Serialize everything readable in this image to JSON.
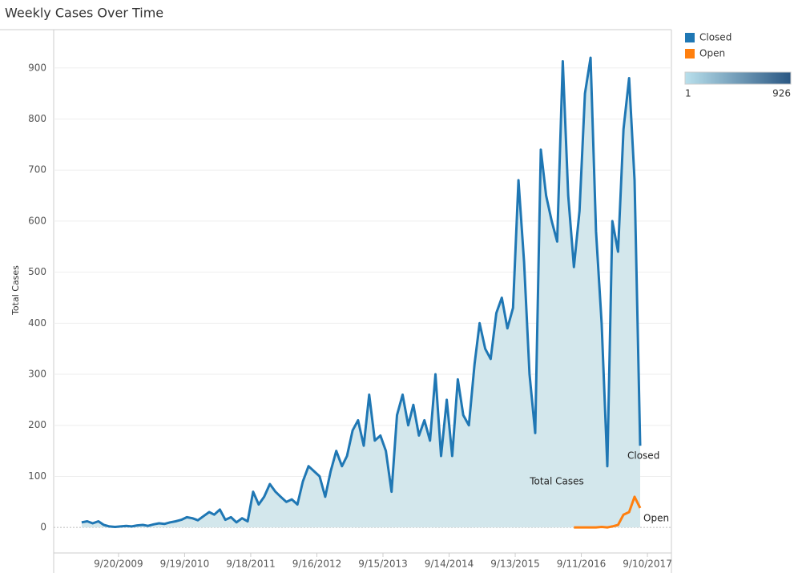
{
  "chart_data": {
    "type": "line",
    "title": "Weekly Cases Over Time",
    "ylabel": "Total Cases",
    "xlim": [
      "9/28/2008",
      "1/20/2018"
    ],
    "xticks": [
      "9/20/2009",
      "9/19/2010",
      "9/18/2011",
      "9/16/2012",
      "9/15/2013",
      "9/14/2014",
      "9/13/2015",
      "9/11/2016",
      "9/10/2017"
    ],
    "ylim": [
      -50,
      975
    ],
    "yticks": [
      0,
      100,
      200,
      300,
      400,
      500,
      600,
      700,
      800,
      900
    ],
    "grid": true,
    "area_fill": "#d3e7ec",
    "color_legend": {
      "min": 1,
      "max": 926,
      "colors": [
        "#b9e0ec",
        "#2a5783"
      ]
    },
    "annotations": [
      "Closed",
      "Total Cases",
      "Open"
    ],
    "series": [
      {
        "name": "Closed",
        "color": "#1f77b4",
        "x": [
          "3/1/2009",
          "4/1/2009",
          "5/1/2009",
          "6/1/2009",
          "7/1/2009",
          "8/1/2009",
          "9/1/2009",
          "10/1/2009",
          "11/1/2009",
          "12/1/2009",
          "1/1/2010",
          "2/1/2010",
          "3/1/2010",
          "4/1/2010",
          "5/1/2010",
          "6/1/2010",
          "7/1/2010",
          "8/1/2010",
          "9/1/2010",
          "10/1/2010",
          "11/1/2010",
          "12/1/2010",
          "1/1/2011",
          "2/1/2011",
          "3/1/2011",
          "4/1/2011",
          "5/1/2011",
          "6/1/2011",
          "7/1/2011",
          "8/1/2011",
          "9/1/2011",
          "10/1/2011",
          "11/1/2011",
          "12/1/2011",
          "1/1/2012",
          "2/1/2012",
          "3/1/2012",
          "4/1/2012",
          "5/1/2012",
          "6/1/2012",
          "7/1/2012",
          "8/1/2012",
          "9/1/2012",
          "10/1/2012",
          "11/1/2012",
          "12/1/2012",
          "1/1/2013",
          "2/1/2013",
          "3/1/2013",
          "4/1/2013",
          "5/1/2013",
          "6/1/2013",
          "7/1/2013",
          "8/1/2013",
          "9/1/2013",
          "10/1/2013",
          "11/1/2013",
          "12/1/2013",
          "1/1/2014",
          "2/1/2014",
          "3/1/2014",
          "4/1/2014",
          "5/1/2014",
          "6/1/2014",
          "7/1/2014",
          "8/1/2014",
          "9/1/2014",
          "10/1/2014",
          "11/1/2014",
          "12/1/2014",
          "1/1/2015",
          "2/1/2015",
          "3/1/2015",
          "4/1/2015",
          "5/1/2015",
          "6/1/2015",
          "7/1/2015",
          "8/1/2015",
          "9/1/2015",
          "10/1/2015",
          "11/1/2015",
          "12/1/2015",
          "1/1/2016",
          "2/1/2016",
          "3/1/2016",
          "4/1/2016",
          "5/1/2016",
          "6/1/2016",
          "7/1/2016",
          "8/1/2016",
          "9/1/2016",
          "10/1/2016",
          "11/1/2016",
          "12/1/2016",
          "1/1/2017",
          "2/1/2017",
          "3/1/2017",
          "4/1/2017",
          "5/1/2017",
          "6/1/2017",
          "7/1/2017",
          "8/1/2017"
        ],
        "values": [
          10,
          12,
          8,
          12,
          5,
          2,
          1,
          2,
          3,
          2,
          4,
          5,
          3,
          6,
          8,
          7,
          10,
          12,
          15,
          20,
          18,
          14,
          22,
          30,
          25,
          35,
          15,
          20,
          10,
          18,
          12,
          70,
          45,
          60,
          85,
          70,
          60,
          50,
          55,
          45,
          90,
          120,
          110,
          100,
          60,
          110,
          150,
          120,
          140,
          190,
          210,
          160,
          260,
          170,
          180,
          150,
          70,
          220,
          260,
          200,
          240,
          180,
          210,
          170,
          300,
          140,
          250,
          140,
          290,
          220,
          200,
          320,
          400,
          350,
          330,
          420,
          450,
          390,
          430,
          680,
          520,
          300,
          185,
          740,
          650,
          600,
          560,
          913,
          650,
          510,
          620,
          850,
          920,
          580,
          400,
          120,
          600,
          540,
          780,
          880,
          680,
          160
        ]
      },
      {
        "name": "Open",
        "color": "#ff7f0e",
        "x": [
          "8/1/2016",
          "9/1/2016",
          "10/1/2016",
          "11/1/2016",
          "12/1/2016",
          "1/1/2017",
          "2/1/2017",
          "3/1/2017",
          "4/1/2017",
          "5/1/2017",
          "6/1/2017",
          "7/1/2017",
          "8/1/2017"
        ],
        "values": [
          0,
          0,
          0,
          0,
          0,
          1,
          0,
          2,
          5,
          25,
          30,
          60,
          38
        ]
      }
    ]
  }
}
